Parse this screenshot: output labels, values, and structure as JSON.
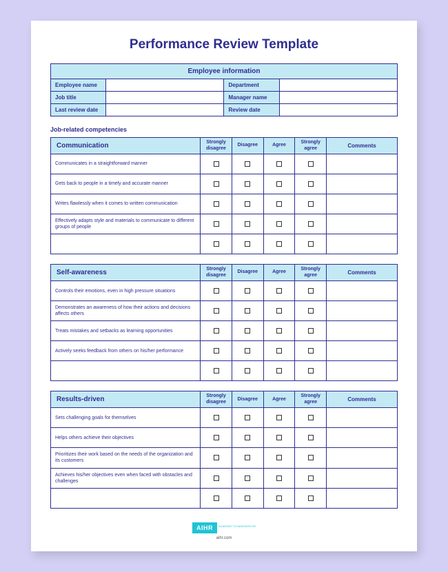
{
  "title": "Performance Review Template",
  "info": {
    "header": "Employee information",
    "fields": [
      {
        "left": "Employee name",
        "right": "Department"
      },
      {
        "left": "Job title",
        "right": "Manager name"
      },
      {
        "left": "Last review date",
        "right": "Review date"
      }
    ]
  },
  "section_heading": "Job-related competencies",
  "rating_columns": [
    "Strongly disagree",
    "Disagree",
    "Agree",
    "Strongly agree"
  ],
  "comments_label": "Comments",
  "competencies": [
    {
      "name": "Communication",
      "items": [
        "Communicates in a straightforward manner",
        "Gets back to people in a timely and accurate manner",
        "Writes flawlessly when it comes to written communication",
        "Effectively adapts style and materials to communicate to different groups of people",
        ""
      ]
    },
    {
      "name": "Self-awareness",
      "items": [
        "Controls their emotions, even in high pressure situations",
        "Demonstrates an awareness of how their actions and decisions affects others",
        "Treats mistakes and setbacks as learning opportunities",
        "Actively seeks feedback from others on his/her performance",
        ""
      ]
    },
    {
      "name": "Results-driven",
      "items": [
        "Sets challenging goals for themselves",
        "Helps others achieve their objectives",
        "Prioritizes their work based on the needs of the organization and its customers",
        "Achieves his/her objectives even when faced with obstacles and challenges",
        ""
      ]
    }
  ],
  "footer": {
    "logo": "AIHR",
    "logo_sub": "ACADEMY TO INNOVATE HR",
    "url": "aihr.com"
  }
}
